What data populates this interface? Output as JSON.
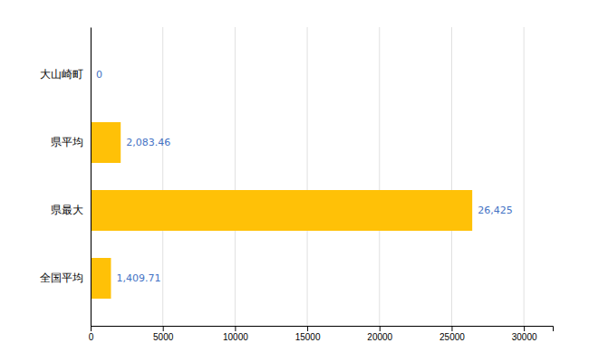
{
  "chart_data": {
    "type": "bar",
    "orientation": "horizontal",
    "categories": [
      "全国平均",
      "県最大",
      "県平均",
      "大山崎町"
    ],
    "values": [
      1409.71,
      26425,
      2083.46,
      0
    ],
    "value_labels": [
      "1,409.71",
      "26,425",
      "2,083.46",
      "0"
    ],
    "data_labels": true,
    "color": "#FFC107",
    "xlim": [
      0,
      32000
    ],
    "xticks": [
      0,
      5000,
      10000,
      15000,
      20000,
      25000,
      30000
    ],
    "grid": true
  }
}
